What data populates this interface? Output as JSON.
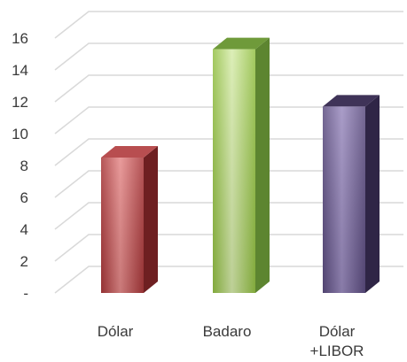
{
  "chart_data": {
    "type": "bar",
    "categories": [
      [
        "Dólar"
      ],
      [
        "Badaro"
      ],
      [
        "Dólar",
        "+LIBOR"
      ]
    ],
    "values": [
      8.5,
      15.3,
      11.7
    ],
    "ylim": [
      0,
      16
    ],
    "y_ticks": [
      {
        "value": 0,
        "label": "-"
      },
      {
        "value": 2,
        "label": "2"
      },
      {
        "value": 4,
        "label": "4"
      },
      {
        "value": 6,
        "label": "6"
      },
      {
        "value": 8,
        "label": "8"
      },
      {
        "value": 10,
        "label": "10"
      },
      {
        "value": 12,
        "label": "12"
      },
      {
        "value": 14,
        "label": "14"
      },
      {
        "value": 16,
        "label": "16"
      }
    ],
    "grid": true,
    "legend": "none",
    "style": "3d-column",
    "bar_colors": [
      {
        "front": "#a8383a",
        "front_light": "#e58a8a",
        "side": "#6e1f21",
        "top": "#b84e50"
      },
      {
        "front": "#93c044",
        "front_light": "#d7ecac",
        "side": "#5d8530",
        "top": "#6f9a3a"
      },
      {
        "front": "#5c4d80",
        "front_light": "#9b8cbf",
        "side": "#2f2546",
        "top": "#3f3358"
      }
    ],
    "grid_color": "#d9d9d9"
  }
}
